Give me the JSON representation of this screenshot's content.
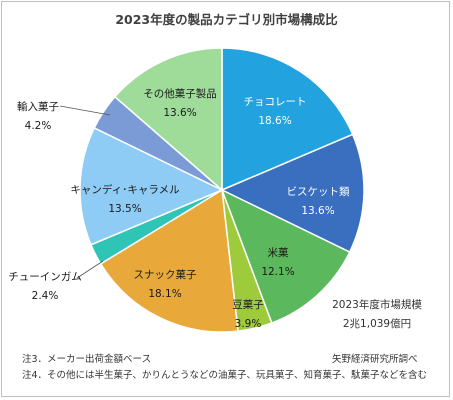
{
  "chart_data": {
    "type": "pie",
    "title": "2023年度の製品カテゴリ別市場構成比",
    "categories": [
      "チョコレート",
      "ビスケット類",
      "米菓",
      "豆菓子",
      "スナック菓子",
      "チューインガム",
      "キャンディ･キャラメル",
      "輸入菓子",
      "その他菓子製品"
    ],
    "values": [
      18.6,
      13.6,
      12.1,
      3.9,
      18.1,
      2.4,
      13.5,
      4.2,
      13.6
    ],
    "value_labels": [
      "18.6%",
      "13.6%",
      "12.1%",
      "3.9%",
      "18.1%",
      "2.4%",
      "13.5%",
      "4.2%",
      "13.6%"
    ],
    "colors": [
      "#22a3e0",
      "#3a6fbf",
      "#5cb85c",
      "#9ecb3c",
      "#e8a83a",
      "#2ec4b6",
      "#8ecbf5",
      "#7b9bd6",
      "#9fdc9a"
    ],
    "start_angle_deg": 0,
    "direction": "clockwise",
    "legend": "none"
  },
  "total_label": {
    "line1": "2023年度市場規模",
    "line2": "2兆1,039億円"
  },
  "notes": {
    "note3": "注3．メーカー出荷金額ベース",
    "note4": "注4．その他には半生菓子、かりんとうなどの油菓子、玩具菓子、知育菓子、駄菓子などを含む",
    "source": "矢野経済研究所調べ"
  }
}
